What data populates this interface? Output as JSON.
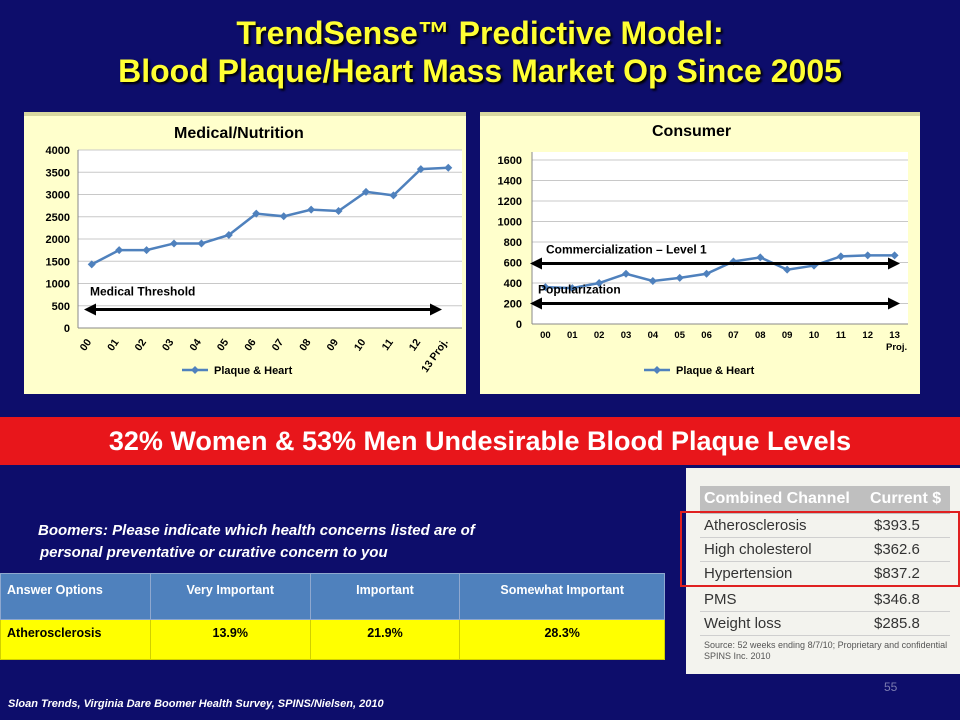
{
  "title": {
    "line1": "TrendSense™ Predictive Model:",
    "line2": "Blood Plaque/Heart Mass Market Op Since 2005"
  },
  "chart_data": [
    {
      "type": "line",
      "title": "Medical/Nutrition",
      "categories": [
        "00",
        "01",
        "02",
        "03",
        "04",
        "05",
        "06",
        "07",
        "08",
        "09",
        "10",
        "11",
        "12",
        "13 Proj."
      ],
      "series": [
        {
          "name": "Plaque & Heart",
          "values": [
            1430,
            1750,
            1750,
            1900,
            1900,
            2090,
            2570,
            2510,
            2660,
            2630,
            3060,
            2980,
            3570,
            3600
          ]
        }
      ],
      "ylim": [
        0,
        4000
      ],
      "yticks": [
        0,
        500,
        1000,
        1500,
        2000,
        2500,
        3000,
        3500,
        4000
      ],
      "threshold": {
        "label": "Medical Threshold",
        "value": 550
      },
      "legend": "bottom",
      "color": "#4f81bd"
    },
    {
      "type": "line",
      "title": "Consumer",
      "categories": [
        "00",
        "01",
        "02",
        "03",
        "04",
        "05",
        "06",
        "07",
        "08",
        "09",
        "10",
        "11",
        "12",
        "13"
      ],
      "category_note": "Proj.",
      "series": [
        {
          "name": "Plaque & Heart",
          "values": [
            360,
            350,
            400,
            490,
            420,
            450,
            490,
            610,
            650,
            530,
            570,
            660,
            670,
            670
          ]
        }
      ],
      "ylim": [
        0,
        1600
      ],
      "yticks": [
        0,
        200,
        400,
        600,
        800,
        1000,
        1200,
        1400,
        1600
      ],
      "thresholds": [
        {
          "label": "Commercialization  – Level 1",
          "value": 590
        },
        {
          "label": "Popularization",
          "value": 200
        }
      ],
      "legend": "bottom",
      "color": "#4f81bd"
    }
  ],
  "banner": "32% Women & 53% Men Undesirable Blood Plaque Levels",
  "question": {
    "line1": "Boomers: Please indicate which health concerns listed are of",
    "line2": "personal  preventative or curative concern to you"
  },
  "survey": {
    "headers": [
      "Answer Options",
      "Very Important",
      "Important",
      "Somewhat Important"
    ],
    "row": [
      "Atherosclerosis",
      "13.9%",
      "21.9%",
      "28.3%"
    ]
  },
  "spins": {
    "header_left": "Combined Channel",
    "header_right": "Current $",
    "rows": [
      {
        "name": "Atherosclerosis",
        "value": "$393.5"
      },
      {
        "name": "High cholesterol",
        "value": "$362.6"
      },
      {
        "name": "Hypertension",
        "value": "$837.2"
      },
      {
        "name": "PMS",
        "value": "$346.8"
      },
      {
        "name": "Weight loss",
        "value": "$285.8"
      }
    ],
    "source": "Source: 52 weeks ending 8/7/10; Proprietary and confidential SPINS Inc. 2010"
  },
  "page_number": "55",
  "footer": "Sloan Trends, Virginia Dare Boomer Health Survey, SPINS/Nielsen, 2010"
}
